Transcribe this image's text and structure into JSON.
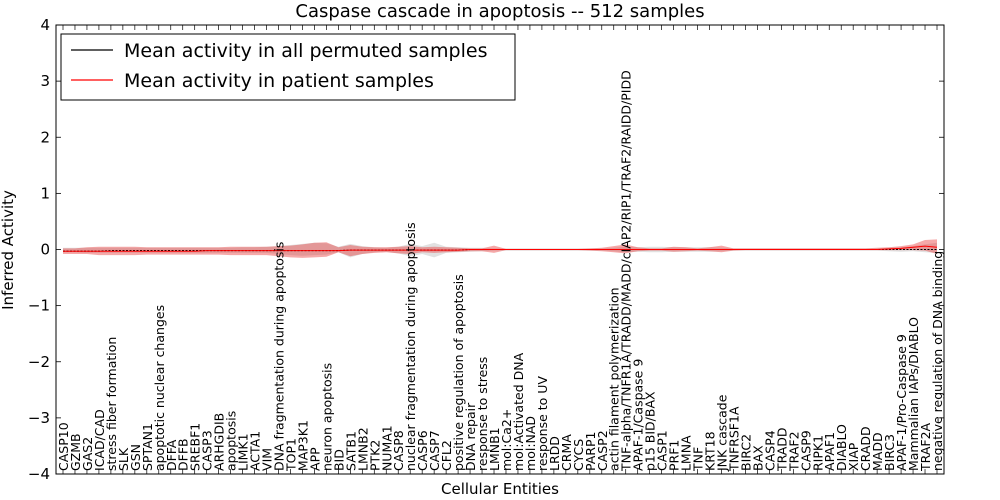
{
  "chart_data": {
    "type": "line",
    "title": "Caspase cascade in apoptosis -- 512 samples",
    "xlabel": "Cellular Entities",
    "ylabel": "Inferred Activity",
    "ylim": [
      -4,
      4
    ],
    "yticks": [
      "−4",
      "−3",
      "−2",
      "−1",
      "0",
      "1",
      "2",
      "3",
      "4"
    ],
    "ytick_values": [
      -4,
      -3,
      -2,
      -1,
      0,
      1,
      2,
      3,
      4
    ],
    "legend_position": "top-left",
    "categories": [
      "CASP10",
      "GZMB",
      "GAS2",
      "ICAD/CAD",
      "stress fiber formation",
      "SLK",
      "GSN",
      "SPTAN1",
      "apoptotic nuclear changes",
      "DFFA",
      "DFFB",
      "SREBF1",
      "CASP3",
      "ARHGDIB",
      "apoptosis",
      "LIMK1",
      "ACTA1",
      "VIM",
      "DNA fragmentation during apoptosis",
      "TOP1",
      "MAP3K1",
      "APP",
      "neuron apoptosis",
      "BID",
      "SATB1",
      "LMNB2",
      "PTK2",
      "NUMA1",
      "CASP8",
      "nuclear fragmentation during apoptosis",
      "CASP6",
      "CASP7",
      "CFL2",
      "positive regulation of apoptosis",
      "DNA repair",
      "response to stress",
      "LMNB1",
      "mol:Ca2+",
      "mol:Activated DNA",
      "mol:NAD",
      "response to UV",
      "LRDD",
      "CRMA",
      "CYCS",
      "PARP1",
      "CASP2",
      "actin filament polymerization",
      "TNF-alpha/TNFR1A/TRADD/MADD/cIAP2/RIP1/TRAF2/RAIDD/PIDD",
      "APAF-1/Caspase 9",
      "p15 BID/BAX",
      "CASP1",
      "PRF1",
      "LMNA",
      "TNF",
      "KRT18",
      "JNK cascade",
      "TNFRSF1A",
      "BIRC2",
      "BAX",
      "CASP4",
      "TRADD",
      "TRAF2",
      "CASP9",
      "RIPK1",
      "APAF1",
      "DIABLO",
      "XIAP",
      "CRADD",
      "MADD",
      "BIRC3",
      "APAF-1/Pro-Caspase 9",
      "Mammalian IAPs/DIABLO",
      "TRAF2A",
      "negative regulation of DNA binding"
    ],
    "series": [
      {
        "name": "Mean activity in all permuted samples",
        "color": "#000000",
        "values": [
          -0.03,
          -0.03,
          -0.03,
          -0.03,
          -0.02,
          -0.02,
          -0.02,
          -0.02,
          -0.02,
          -0.02,
          -0.02,
          -0.02,
          -0.02,
          -0.02,
          -0.02,
          -0.02,
          -0.02,
          -0.02,
          -0.02,
          -0.02,
          -0.02,
          -0.02,
          -0.02,
          -0.02,
          -0.01,
          -0.01,
          -0.01,
          -0.01,
          -0.01,
          -0.01,
          -0.01,
          -0.01,
          -0.01,
          -0.01,
          0,
          0,
          0,
          0,
          0,
          0,
          0,
          0,
          0,
          0,
          0,
          0,
          0,
          0,
          0,
          0,
          0,
          0,
          0,
          0,
          0,
          0,
          0,
          0,
          0,
          0,
          0,
          0,
          0,
          0,
          0,
          0,
          0,
          0,
          0,
          0,
          0,
          0,
          0,
          0
        ],
        "upper": [
          0.03,
          0.03,
          0.03,
          0.03,
          0.03,
          0.03,
          0.03,
          0.03,
          0.03,
          0.03,
          0.03,
          0.03,
          0.03,
          0.03,
          0.03,
          0.04,
          0.04,
          0.05,
          0.06,
          0.08,
          0.1,
          0.12,
          0.11,
          0.05,
          0.1,
          0.06,
          0.04,
          0.03,
          0.05,
          0.1,
          0.06,
          0.12,
          0.05,
          0.04,
          0.03,
          0.03,
          0.02,
          0.02,
          0.02,
          0.02,
          0.02,
          0.02,
          0.02,
          0.02,
          0.02,
          0.02,
          0.03,
          0.05,
          0.04,
          0.05,
          0.05,
          0.04,
          0.04,
          0.04,
          0.04,
          0.03,
          0.02,
          0.02,
          0.02,
          0.02,
          0.02,
          0.02,
          0.02,
          0.02,
          0.02,
          0.02,
          0.02,
          0.02,
          0.02,
          0.03,
          0.04,
          0.06,
          0.09,
          0.12
        ],
        "lower": [
          -0.05,
          -0.05,
          -0.06,
          -0.06,
          -0.06,
          -0.06,
          -0.06,
          -0.06,
          -0.06,
          -0.06,
          -0.06,
          -0.06,
          -0.06,
          -0.06,
          -0.06,
          -0.06,
          -0.06,
          -0.06,
          -0.08,
          -0.1,
          -0.11,
          -0.1,
          -0.09,
          -0.05,
          -0.14,
          -0.08,
          -0.05,
          -0.04,
          -0.07,
          -0.12,
          -0.08,
          -0.14,
          -0.06,
          -0.05,
          -0.04,
          -0.03,
          -0.02,
          -0.02,
          -0.02,
          -0.02,
          -0.02,
          -0.02,
          -0.02,
          -0.02,
          -0.02,
          -0.02,
          -0.03,
          -0.05,
          -0.04,
          -0.05,
          -0.05,
          -0.04,
          -0.04,
          -0.04,
          -0.04,
          -0.03,
          -0.02,
          -0.02,
          -0.02,
          -0.02,
          -0.02,
          -0.02,
          -0.02,
          -0.02,
          -0.02,
          -0.02,
          -0.02,
          -0.02,
          -0.02,
          -0.03,
          -0.04,
          -0.03,
          -0.05,
          -0.06
        ]
      },
      {
        "name": "Mean activity in patient samples",
        "color": "#ff0000",
        "values": [
          -0.03,
          -0.03,
          -0.03,
          -0.03,
          -0.03,
          -0.03,
          -0.03,
          -0.03,
          -0.03,
          -0.03,
          -0.03,
          -0.03,
          -0.02,
          -0.02,
          -0.02,
          -0.02,
          -0.02,
          -0.02,
          -0.02,
          -0.02,
          -0.02,
          -0.02,
          -0.02,
          -0.02,
          -0.01,
          -0.01,
          -0.01,
          -0.01,
          -0.01,
          -0.01,
          -0.01,
          -0.01,
          -0.01,
          -0.01,
          0,
          0,
          0,
          0,
          0,
          0,
          0,
          0,
          0,
          0,
          0,
          0,
          0,
          0,
          0,
          0,
          0,
          0,
          0,
          0,
          0,
          0,
          0,
          0,
          0,
          0,
          0,
          0,
          0,
          0,
          0,
          0,
          0,
          0,
          0,
          0.01,
          0.02,
          0.04,
          0.06,
          0.04
        ],
        "upper": [
          0.02,
          0.02,
          0.04,
          0.05,
          0.05,
          0.05,
          0.05,
          0.04,
          0.04,
          0.04,
          0.04,
          0.04,
          0.04,
          0.04,
          0.05,
          0.05,
          0.05,
          0.05,
          0.06,
          0.07,
          0.09,
          0.12,
          0.13,
          0.04,
          0.08,
          0.05,
          0.04,
          0.04,
          0.05,
          0.06,
          0.04,
          0.05,
          0.04,
          0.03,
          0.02,
          0.02,
          0.07,
          0.01,
          0.01,
          0.01,
          0.01,
          0.01,
          0.01,
          0.01,
          0.02,
          0.03,
          0.06,
          0.09,
          0.04,
          0.02,
          0.02,
          0.05,
          0.04,
          0.02,
          0.04,
          0.07,
          0.02,
          0.02,
          0.02,
          0.02,
          0.02,
          0.02,
          0.02,
          0.02,
          0.02,
          0.02,
          0.02,
          0.02,
          0.03,
          0.04,
          0.06,
          0.09,
          0.17,
          0.18
        ],
        "lower": [
          -0.08,
          -0.08,
          -0.08,
          -0.1,
          -0.1,
          -0.1,
          -0.1,
          -0.09,
          -0.09,
          -0.09,
          -0.09,
          -0.09,
          -0.09,
          -0.09,
          -0.1,
          -0.1,
          -0.1,
          -0.1,
          -0.12,
          -0.14,
          -0.15,
          -0.14,
          -0.13,
          -0.05,
          -0.12,
          -0.08,
          -0.06,
          -0.05,
          -0.07,
          -0.08,
          -0.05,
          -0.06,
          -0.05,
          -0.04,
          -0.03,
          -0.03,
          -0.06,
          -0.01,
          -0.01,
          -0.01,
          -0.01,
          -0.01,
          -0.01,
          -0.01,
          -0.02,
          -0.03,
          -0.05,
          -0.07,
          -0.03,
          -0.02,
          -0.02,
          -0.04,
          -0.03,
          -0.02,
          -0.03,
          -0.05,
          -0.02,
          -0.01,
          -0.01,
          -0.01,
          -0.01,
          -0.01,
          -0.01,
          -0.01,
          -0.01,
          -0.01,
          -0.01,
          -0.01,
          -0.01,
          -0.01,
          -0.01,
          -0.01,
          -0.02,
          -0.08
        ]
      }
    ]
  }
}
